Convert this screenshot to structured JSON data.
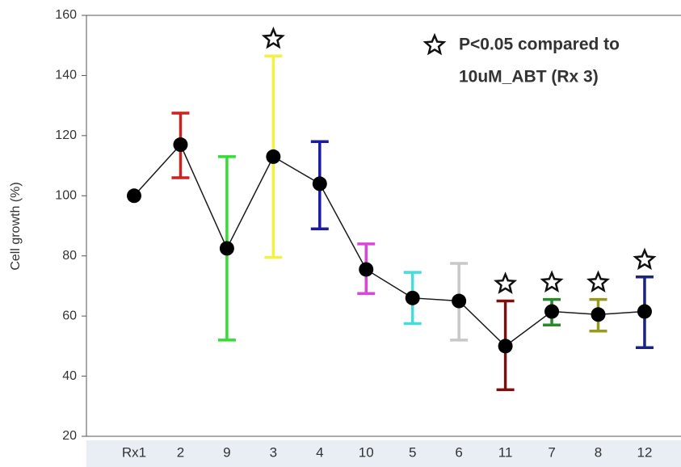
{
  "chart_data": {
    "type": "line",
    "y_label": "Cell growth (%)",
    "categories": [
      "Rx1",
      "2",
      "9",
      "3",
      "4",
      "10",
      "5",
      "6",
      "11",
      "7",
      "8",
      "12"
    ],
    "series": [
      {
        "color": "#1a1a1a",
        "values": [
          100,
          117,
          82.5,
          113,
          104,
          75.5,
          66,
          65,
          50,
          61.5,
          60.5,
          61.5
        ],
        "upper": [
          null,
          127.5,
          113,
          146.5,
          118,
          84,
          74.5,
          77.5,
          65,
          65.5,
          65.5,
          73
        ],
        "lower": [
          null,
          106,
          52,
          79.5,
          89,
          67.5,
          57.5,
          52,
          35.5,
          57,
          55,
          49.5
        ],
        "error_colors": [
          null,
          "#cc2222",
          "#33dd33",
          "#f2f240",
          "#1a1aaa",
          "#dd44dd",
          "#44dddd",
          "#c8c8c8",
          "#7a1010",
          "#2a8a2a",
          "#999920",
          "#1a237e"
        ],
        "significant": [
          false,
          false,
          false,
          true,
          false,
          false,
          false,
          false,
          true,
          true,
          true,
          true
        ]
      }
    ],
    "annotation": [
      "P<0.05 compared to",
      "10uM_ABT (Rx 3)"
    ],
    "ylim": [
      20,
      160
    ],
    "yticks": [
      20,
      40,
      60,
      80,
      100,
      120,
      140,
      160
    ]
  }
}
